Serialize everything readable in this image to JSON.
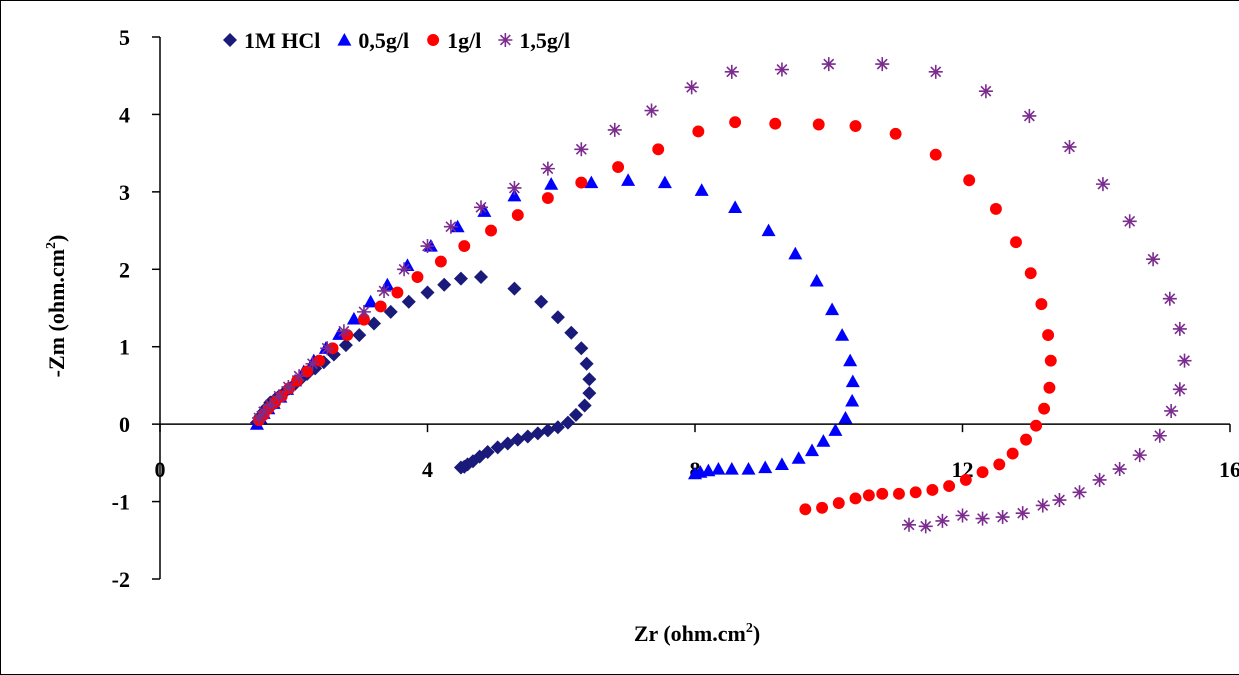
{
  "chart_data": {
    "type": "scatter",
    "title": "",
    "xlabel": "Zr (ohm.cm",
    "xlabel_sup": "2",
    "xlabel_close": ")",
    "ylabel": "-Zm (ohm.cm",
    "ylabel_sup": "2",
    "ylabel_close": ")",
    "xlim": [
      0,
      16
    ],
    "ylim": [
      -2,
      5
    ],
    "x_ticks": [
      "0",
      "4",
      "8",
      "12",
      "16"
    ],
    "x_tick_values": [
      0,
      4,
      8,
      12,
      16
    ],
    "y_ticks": [
      "-2",
      "-1",
      "0",
      "1",
      "2",
      "3",
      "4",
      "5"
    ],
    "y_tick_values": [
      -2,
      -1,
      0,
      1,
      2,
      3,
      4,
      5
    ],
    "grid": false,
    "legend_position": "top",
    "series": [
      {
        "name": "1M HCl",
        "marker": "diamond",
        "color": "#1a1a7a",
        "points": [
          [
            1.45,
            0.02
          ],
          [
            1.5,
            0.1
          ],
          [
            1.55,
            0.16
          ],
          [
            1.6,
            0.22
          ],
          [
            1.65,
            0.28
          ],
          [
            1.72,
            0.32
          ],
          [
            1.78,
            0.36
          ],
          [
            1.85,
            0.4
          ],
          [
            1.93,
            0.46
          ],
          [
            2.02,
            0.52
          ],
          [
            2.1,
            0.58
          ],
          [
            2.2,
            0.65
          ],
          [
            2.32,
            0.72
          ],
          [
            2.45,
            0.8
          ],
          [
            2.6,
            0.9
          ],
          [
            2.78,
            1.02
          ],
          [
            2.98,
            1.15
          ],
          [
            3.2,
            1.3
          ],
          [
            3.45,
            1.45
          ],
          [
            3.72,
            1.58
          ],
          [
            4.0,
            1.7
          ],
          [
            4.25,
            1.8
          ],
          [
            4.5,
            1.88
          ],
          [
            4.8,
            1.9
          ],
          [
            5.3,
            1.75
          ],
          [
            5.7,
            1.58
          ],
          [
            5.95,
            1.38
          ],
          [
            6.15,
            1.18
          ],
          [
            6.3,
            0.98
          ],
          [
            6.38,
            0.78
          ],
          [
            6.42,
            0.58
          ],
          [
            6.42,
            0.4
          ],
          [
            6.35,
            0.24
          ],
          [
            6.22,
            0.12
          ],
          [
            6.1,
            0.02
          ],
          [
            5.95,
            -0.04
          ],
          [
            5.8,
            -0.08
          ],
          [
            5.65,
            -0.12
          ],
          [
            5.5,
            -0.16
          ],
          [
            5.35,
            -0.2
          ],
          [
            5.2,
            -0.25
          ],
          [
            5.05,
            -0.3
          ],
          [
            4.9,
            -0.36
          ],
          [
            4.78,
            -0.42
          ],
          [
            4.68,
            -0.48
          ],
          [
            4.6,
            -0.52
          ],
          [
            4.55,
            -0.55
          ],
          [
            4.5,
            -0.56
          ]
        ]
      },
      {
        "name": "0,5g/l",
        "marker": "triangle",
        "color": "#0000ff",
        "points": [
          [
            1.45,
            0.0
          ],
          [
            1.5,
            0.08
          ],
          [
            1.55,
            0.14
          ],
          [
            1.62,
            0.2
          ],
          [
            1.7,
            0.27
          ],
          [
            1.8,
            0.35
          ],
          [
            1.9,
            0.45
          ],
          [
            2.02,
            0.56
          ],
          [
            2.15,
            0.68
          ],
          [
            2.3,
            0.82
          ],
          [
            2.48,
            0.98
          ],
          [
            2.68,
            1.16
          ],
          [
            2.9,
            1.36
          ],
          [
            3.15,
            1.58
          ],
          [
            3.4,
            1.8
          ],
          [
            3.7,
            2.05
          ],
          [
            4.05,
            2.3
          ],
          [
            4.45,
            2.55
          ],
          [
            4.85,
            2.75
          ],
          [
            5.3,
            2.95
          ],
          [
            5.85,
            3.1
          ],
          [
            6.45,
            3.12
          ],
          [
            7.0,
            3.15
          ],
          [
            7.55,
            3.12
          ],
          [
            8.1,
            3.02
          ],
          [
            8.6,
            2.8
          ],
          [
            9.1,
            2.5
          ],
          [
            9.5,
            2.2
          ],
          [
            9.82,
            1.85
          ],
          [
            10.05,
            1.48
          ],
          [
            10.2,
            1.15
          ],
          [
            10.32,
            0.82
          ],
          [
            10.36,
            0.55
          ],
          [
            10.35,
            0.3
          ],
          [
            10.25,
            0.08
          ],
          [
            10.1,
            -0.08
          ],
          [
            9.92,
            -0.22
          ],
          [
            9.75,
            -0.34
          ],
          [
            9.55,
            -0.44
          ],
          [
            9.3,
            -0.52
          ],
          [
            9.05,
            -0.56
          ],
          [
            8.8,
            -0.58
          ],
          [
            8.55,
            -0.58
          ],
          [
            8.35,
            -0.58
          ],
          [
            8.2,
            -0.6
          ],
          [
            8.08,
            -0.62
          ],
          [
            8.0,
            -0.64
          ]
        ]
      },
      {
        "name": "1g/l",
        "marker": "circle",
        "color": "#ff0000",
        "points": [
          [
            1.48,
            0.05
          ],
          [
            1.55,
            0.12
          ],
          [
            1.62,
            0.2
          ],
          [
            1.72,
            0.28
          ],
          [
            1.82,
            0.36
          ],
          [
            1.93,
            0.46
          ],
          [
            2.05,
            0.56
          ],
          [
            2.2,
            0.68
          ],
          [
            2.38,
            0.82
          ],
          [
            2.58,
            0.98
          ],
          [
            2.8,
            1.15
          ],
          [
            3.05,
            1.35
          ],
          [
            3.3,
            1.52
          ],
          [
            3.55,
            1.7
          ],
          [
            3.85,
            1.9
          ],
          [
            4.2,
            2.1
          ],
          [
            4.55,
            2.3
          ],
          [
            4.95,
            2.5
          ],
          [
            5.35,
            2.7
          ],
          [
            5.8,
            2.92
          ],
          [
            6.3,
            3.12
          ],
          [
            6.85,
            3.32
          ],
          [
            7.45,
            3.55
          ],
          [
            8.05,
            3.78
          ],
          [
            8.6,
            3.9
          ],
          [
            9.2,
            3.88
          ],
          [
            9.85,
            3.87
          ],
          [
            10.4,
            3.85
          ],
          [
            11.0,
            3.75
          ],
          [
            11.6,
            3.48
          ],
          [
            12.1,
            3.15
          ],
          [
            12.5,
            2.78
          ],
          [
            12.8,
            2.35
          ],
          [
            13.02,
            1.95
          ],
          [
            13.18,
            1.55
          ],
          [
            13.28,
            1.15
          ],
          [
            13.32,
            0.82
          ],
          [
            13.3,
            0.47
          ],
          [
            13.22,
            0.2
          ],
          [
            13.1,
            -0.02
          ],
          [
            12.95,
            -0.2
          ],
          [
            12.75,
            -0.38
          ],
          [
            12.55,
            -0.52
          ],
          [
            12.3,
            -0.62
          ],
          [
            12.05,
            -0.72
          ],
          [
            11.8,
            -0.8
          ],
          [
            11.55,
            -0.85
          ],
          [
            11.3,
            -0.88
          ],
          [
            11.05,
            -0.9
          ],
          [
            10.8,
            -0.9
          ],
          [
            10.6,
            -0.92
          ],
          [
            10.4,
            -0.96
          ],
          [
            10.15,
            -1.02
          ],
          [
            9.9,
            -1.08
          ],
          [
            9.65,
            -1.1
          ]
        ]
      },
      {
        "name": "1,5g/l",
        "marker": "star",
        "color": "#7b2c8e",
        "points": [
          [
            1.48,
            0.08
          ],
          [
            1.55,
            0.16
          ],
          [
            1.65,
            0.25
          ],
          [
            1.78,
            0.36
          ],
          [
            1.92,
            0.48
          ],
          [
            2.08,
            0.62
          ],
          [
            2.28,
            0.78
          ],
          [
            2.5,
            0.98
          ],
          [
            2.75,
            1.2
          ],
          [
            3.05,
            1.45
          ],
          [
            3.35,
            1.72
          ],
          [
            3.65,
            2.0
          ],
          [
            4.0,
            2.3
          ],
          [
            4.35,
            2.55
          ],
          [
            4.8,
            2.8
          ],
          [
            5.3,
            3.05
          ],
          [
            5.8,
            3.3
          ],
          [
            6.3,
            3.55
          ],
          [
            6.8,
            3.8
          ],
          [
            7.35,
            4.05
          ],
          [
            7.95,
            4.35
          ],
          [
            8.55,
            4.55
          ],
          [
            9.3,
            4.58
          ],
          [
            10.0,
            4.65
          ],
          [
            10.8,
            4.65
          ],
          [
            11.6,
            4.55
          ],
          [
            12.35,
            4.3
          ],
          [
            13.0,
            3.98
          ],
          [
            13.6,
            3.58
          ],
          [
            14.1,
            3.1
          ],
          [
            14.5,
            2.62
          ],
          [
            14.85,
            2.13
          ],
          [
            15.1,
            1.62
          ],
          [
            15.25,
            1.23
          ],
          [
            15.32,
            0.82
          ],
          [
            15.25,
            0.45
          ],
          [
            15.12,
            0.17
          ],
          [
            14.95,
            -0.15
          ],
          [
            14.65,
            -0.4
          ],
          [
            14.35,
            -0.58
          ],
          [
            14.05,
            -0.72
          ],
          [
            13.75,
            -0.88
          ],
          [
            13.45,
            -0.98
          ],
          [
            13.2,
            -1.05
          ],
          [
            12.9,
            -1.15
          ],
          [
            12.6,
            -1.2
          ],
          [
            12.3,
            -1.22
          ],
          [
            12.0,
            -1.18
          ],
          [
            11.7,
            -1.25
          ],
          [
            11.45,
            -1.32
          ],
          [
            11.2,
            -1.3
          ]
        ]
      }
    ]
  }
}
